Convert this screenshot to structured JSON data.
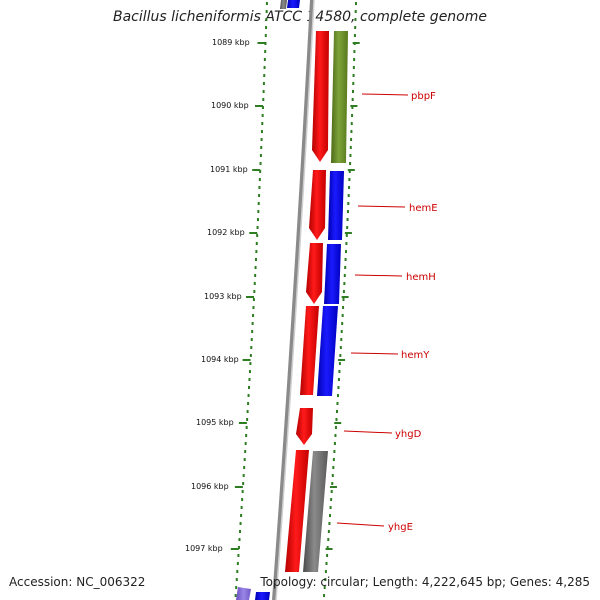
{
  "title": "Bacillus licheniformis ATCC 14580, complete genome",
  "footer": {
    "accession": "Accession: NC_006322",
    "summary": "Topology: circular; Length: 4,222,645 bp; Genes: 4,285"
  },
  "ticks": [
    {
      "label": "1089 kbp"
    },
    {
      "label": "1090 kbp"
    },
    {
      "label": "1091 kbp"
    },
    {
      "label": "1092 kbp"
    },
    {
      "label": "1093 kbp"
    },
    {
      "label": "1094 kbp"
    },
    {
      "label": "1095 kbp"
    },
    {
      "label": "1096 kbp"
    },
    {
      "label": "1097 kbp"
    }
  ],
  "genes": [
    {
      "name": "pbpF"
    },
    {
      "name": "hemE"
    },
    {
      "name": "hemH"
    },
    {
      "name": "hemY"
    },
    {
      "name": "yhgD"
    },
    {
      "name": "yhgE"
    }
  ],
  "colors": {
    "forward": "#ff0000",
    "reverse_blue": "#0000ff",
    "reverse_olive": "#6b8e23",
    "reverse_gray": "#777777",
    "axis_green": "#2e7d22",
    "backbone": "#8a8a8a",
    "label_red": "#cc0000"
  }
}
